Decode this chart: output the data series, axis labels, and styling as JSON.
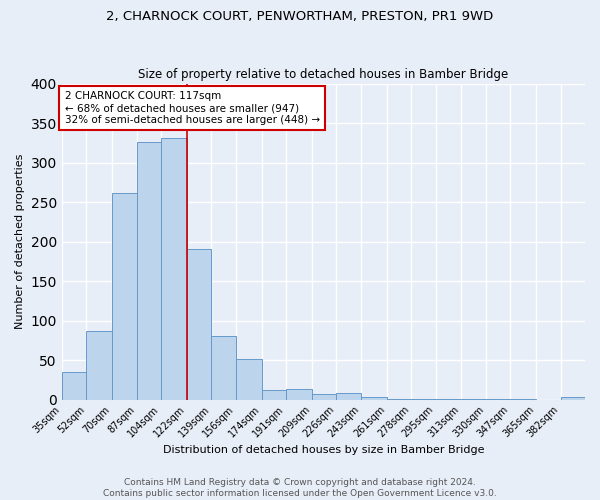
{
  "title": "2, CHARNOCK COURT, PENWORTHAM, PRESTON, PR1 9WD",
  "subtitle": "Size of property relative to detached houses in Bamber Bridge",
  "xlabel": "Distribution of detached houses by size in Bamber Bridge",
  "ylabel": "Number of detached properties",
  "footer_line1": "Contains HM Land Registry data © Crown copyright and database right 2024.",
  "footer_line2": "Contains public sector information licensed under the Open Government Licence v3.0.",
  "bar_labels": [
    "35sqm",
    "52sqm",
    "70sqm",
    "87sqm",
    "104sqm",
    "122sqm",
    "139sqm",
    "156sqm",
    "174sqm",
    "191sqm",
    "209sqm",
    "226sqm",
    "243sqm",
    "261sqm",
    "278sqm",
    "295sqm",
    "313sqm",
    "330sqm",
    "347sqm",
    "365sqm",
    "382sqm"
  ],
  "bar_values": [
    35,
    87,
    261,
    326,
    331,
    191,
    81,
    51,
    12,
    13,
    7,
    9,
    4,
    1,
    1,
    1,
    1,
    1,
    1,
    0,
    4
  ],
  "bar_color": "#bdd4ed",
  "bar_edge_color": "#6699cc",
  "property_line_color": "#cc0000",
  "property_line_x": 122,
  "property_line_label": "2 CHARNOCK COURT: 117sqm",
  "annotation_line1": "← 68% of detached houses are smaller (947)",
  "annotation_line2": "32% of semi-detached houses are larger (448) →",
  "annotation_box_facecolor": "#ffffff",
  "annotation_box_edgecolor": "#cc0000",
  "ylim": [
    0,
    400
  ],
  "background_color": "#e8eef8",
  "grid_color": "#ffffff",
  "title_fontsize": 9.5,
  "subtitle_fontsize": 8.5,
  "xlabel_fontsize": 8,
  "ylabel_fontsize": 8,
  "tick_fontsize": 7,
  "annotation_fontsize": 7.5,
  "footer_fontsize": 6.5,
  "footer_color": "#555555"
}
